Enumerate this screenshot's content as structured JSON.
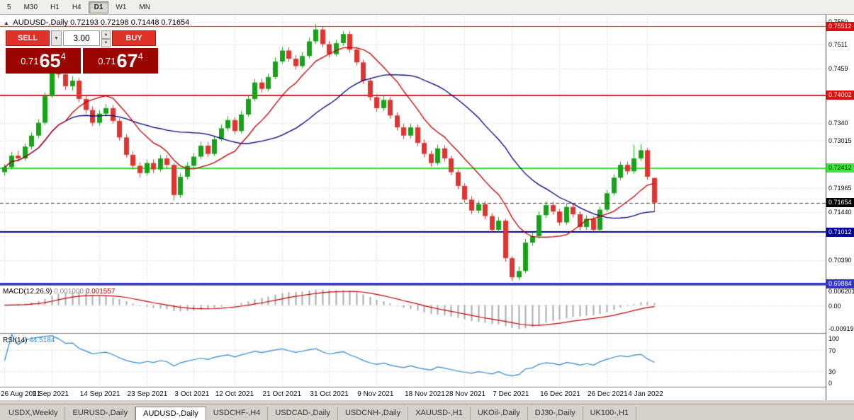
{
  "toolbar": {
    "timeframes": [
      {
        "label": "5",
        "active": false
      },
      {
        "label": "M30",
        "active": false
      },
      {
        "label": "H1",
        "active": false
      },
      {
        "label": "H4",
        "active": false
      },
      {
        "label": "D1",
        "active": true
      },
      {
        "label": "W1",
        "active": false
      },
      {
        "label": "MN",
        "active": false
      }
    ]
  },
  "symbol_header": {
    "marker": "▲",
    "symbol": "AUDUSD-,Daily",
    "ohlc": "0.72193 0.72198 0.71448 0.71654"
  },
  "trade_panel": {
    "sell_label": "SELL",
    "buy_label": "BUY",
    "lot_value": "3.00",
    "sell_price": {
      "prefix": "0.71",
      "big": "65",
      "sup": "4"
    },
    "buy_price": {
      "prefix": "0.71",
      "big": "67",
      "sup": "4"
    }
  },
  "indicators": {
    "macd": {
      "label": "MACD(12,26,9)",
      "value1": "0.001000",
      "value2": "0.001557",
      "scale_top": "0.006201",
      "scale_zero": "0.00",
      "scale_bottom": "-0.00919"
    },
    "rsi": {
      "label": "RSI(14)",
      "value": "44.5184",
      "levels": [
        100,
        70,
        30,
        0
      ]
    }
  },
  "chart_data": {
    "type": "candlestick",
    "symbol": "AUDUSD",
    "timeframe": "Daily",
    "current": {
      "open": 0.72193,
      "high": 0.72198,
      "low": 0.71448,
      "close": 0.71654
    },
    "bull_color": "#17a317",
    "bear_color": "#df3431",
    "ma_fast_period": 10,
    "ma_fast_color": "#c40000",
    "ma_slow_period": 25,
    "ma_slow_color": "#000080",
    "macd_hist_color": "#a9a9a9",
    "macd_signal_color": "#c40000",
    "rsi_color": "#2e86d0",
    "price_axis": {
      "top": 0.7576,
      "bottom": 0.6987,
      "grid_labels": [
        {
          "text": "0.7560",
          "price": 0.756
        },
        {
          "text": "0.7511",
          "price": 0.7511
        },
        {
          "text": "0.7459",
          "price": 0.7459
        },
        {
          "text": "0.7340",
          "price": 0.734
        },
        {
          "text": "0.73015",
          "price": 0.73015
        },
        {
          "text": "0.71965",
          "price": 0.71965
        },
        {
          "text": "0.71440",
          "price": 0.7144
        },
        {
          "text": "0.70390",
          "price": 0.7039
        }
      ],
      "tags": [
        {
          "text": "0.75512",
          "price": 0.75512,
          "bg": "#dd0f0f",
          "fg": "#ffffff"
        },
        {
          "text": "0.74002",
          "price": 0.74002,
          "bg": "#dd0f0f",
          "fg": "#ffffff"
        },
        {
          "text": "0.72412",
          "price": 0.72412,
          "bg": "#3fe43f",
          "fg": "#003300"
        },
        {
          "text": "0.71654",
          "price": 0.71654,
          "bg": "#000000",
          "fg": "#ffffff"
        },
        {
          "text": "0.71012",
          "price": 0.71012,
          "bg": "#000099",
          "fg": "#ffffff"
        },
        {
          "text": "0.69884",
          "price": 0.69884,
          "bg": "#3434cc",
          "fg": "#ffffff"
        }
      ]
    },
    "hlines": [
      {
        "price": 0.75512,
        "color": "#cc2020",
        "width": 1
      },
      {
        "price": 0.74002,
        "color": "#cc2020",
        "width": 2
      },
      {
        "price": 0.72412,
        "color": "#2ee52e",
        "width": 2
      },
      {
        "price": 0.71012,
        "color": "#000090",
        "width": 2
      },
      {
        "price": 0.69884,
        "color": "#3434cc",
        "width": 3
      }
    ],
    "date_labels": [
      {
        "text": "26 Aug 2021",
        "index": 0
      },
      {
        "text": "5 Sep 2021",
        "index": 7
      },
      {
        "text": "14 Sep 2021",
        "index": 14
      },
      {
        "text": "23 Sep 2021",
        "index": 21
      },
      {
        "text": "3 Oct 2021",
        "index": 28
      },
      {
        "text": "12 Oct 2021",
        "index": 34
      },
      {
        "text": "21 Oct 2021",
        "index": 41
      },
      {
        "text": "31 Oct 2021",
        "index": 48
      },
      {
        "text": "9 Nov 2021",
        "index": 55
      },
      {
        "text": "18 Nov 2021",
        "index": 62
      },
      {
        "text": "28 Nov 2021",
        "index": 68
      },
      {
        "text": "7 Dec 2021",
        "index": 75
      },
      {
        "text": "16 Dec 2021",
        "index": 82
      },
      {
        "text": "26 Dec 2021",
        "index": 89
      },
      {
        "text": "4 Jan 2022",
        "index": 95
      }
    ],
    "candles": [
      [
        0.7232,
        0.725,
        0.7224,
        0.7243
      ],
      [
        0.7243,
        0.7276,
        0.7238,
        0.7268
      ],
      [
        0.7268,
        0.7279,
        0.7255,
        0.7262
      ],
      [
        0.7262,
        0.7295,
        0.7257,
        0.7288
      ],
      [
        0.7288,
        0.7319,
        0.7282,
        0.7312
      ],
      [
        0.7312,
        0.7348,
        0.7306,
        0.734
      ],
      [
        0.734,
        0.7406,
        0.7335,
        0.7398
      ],
      [
        0.7398,
        0.7477,
        0.7395,
        0.746
      ],
      [
        0.746,
        0.7473,
        0.7438,
        0.7446
      ],
      [
        0.7446,
        0.7455,
        0.7412,
        0.742
      ],
      [
        0.742,
        0.7442,
        0.741,
        0.7432
      ],
      [
        0.7432,
        0.7438,
        0.7385,
        0.7392
      ],
      [
        0.7392,
        0.7401,
        0.736,
        0.7368
      ],
      [
        0.7368,
        0.7376,
        0.7333,
        0.734
      ],
      [
        0.734,
        0.7368,
        0.7334,
        0.736
      ],
      [
        0.736,
        0.7381,
        0.7354,
        0.7372
      ],
      [
        0.7372,
        0.7379,
        0.7338,
        0.7344
      ],
      [
        0.7344,
        0.735,
        0.7301,
        0.7308
      ],
      [
        0.7308,
        0.7315,
        0.7264,
        0.727
      ],
      [
        0.727,
        0.7278,
        0.7238,
        0.7246
      ],
      [
        0.7246,
        0.7254,
        0.722,
        0.723
      ],
      [
        0.723,
        0.726,
        0.7224,
        0.7252
      ],
      [
        0.7252,
        0.726,
        0.723,
        0.7238
      ],
      [
        0.7238,
        0.727,
        0.7233,
        0.7262
      ],
      [
        0.7262,
        0.727,
        0.724,
        0.7248
      ],
      [
        0.7248,
        0.7252,
        0.717,
        0.7182
      ],
      [
        0.7182,
        0.723,
        0.7176,
        0.7222
      ],
      [
        0.7222,
        0.7254,
        0.7216,
        0.7246
      ],
      [
        0.7246,
        0.7274,
        0.724,
        0.7266
      ],
      [
        0.7266,
        0.7298,
        0.7261,
        0.729
      ],
      [
        0.729,
        0.7298,
        0.7265,
        0.7272
      ],
      [
        0.7272,
        0.7312,
        0.7267,
        0.7304
      ],
      [
        0.7304,
        0.7336,
        0.7299,
        0.7328
      ],
      [
        0.7328,
        0.7354,
        0.7322,
        0.7346
      ],
      [
        0.7346,
        0.7353,
        0.7315,
        0.7322
      ],
      [
        0.7322,
        0.7366,
        0.7317,
        0.7358
      ],
      [
        0.7358,
        0.74,
        0.7353,
        0.7392
      ],
      [
        0.7392,
        0.7436,
        0.7387,
        0.7428
      ],
      [
        0.7428,
        0.7436,
        0.7406,
        0.7414
      ],
      [
        0.7414,
        0.7448,
        0.7409,
        0.744
      ],
      [
        0.744,
        0.7483,
        0.7435,
        0.7474
      ],
      [
        0.7474,
        0.7506,
        0.7469,
        0.7498
      ],
      [
        0.7498,
        0.7505,
        0.7473,
        0.748
      ],
      [
        0.748,
        0.7488,
        0.7456,
        0.7464
      ],
      [
        0.7464,
        0.7494,
        0.7459,
        0.7486
      ],
      [
        0.7486,
        0.7526,
        0.7481,
        0.7518
      ],
      [
        0.7518,
        0.7556,
        0.7512,
        0.7544
      ],
      [
        0.7544,
        0.755,
        0.7505,
        0.7512
      ],
      [
        0.7512,
        0.7519,
        0.7483,
        0.749
      ],
      [
        0.749,
        0.7522,
        0.7485,
        0.7514
      ],
      [
        0.7514,
        0.754,
        0.7508,
        0.7534
      ],
      [
        0.7534,
        0.754,
        0.7493,
        0.75
      ],
      [
        0.75,
        0.7506,
        0.7465,
        0.7472
      ],
      [
        0.7472,
        0.7478,
        0.7425,
        0.7432
      ],
      [
        0.7432,
        0.7438,
        0.7389,
        0.7396
      ],
      [
        0.7396,
        0.7403,
        0.7364,
        0.7372
      ],
      [
        0.7372,
        0.7398,
        0.7366,
        0.739
      ],
      [
        0.739,
        0.7396,
        0.7349,
        0.7356
      ],
      [
        0.7356,
        0.7363,
        0.7323,
        0.733
      ],
      [
        0.733,
        0.7338,
        0.7304,
        0.7312
      ],
      [
        0.7312,
        0.7338,
        0.7306,
        0.733
      ],
      [
        0.733,
        0.7336,
        0.7289,
        0.7296
      ],
      [
        0.7296,
        0.7303,
        0.7265,
        0.7272
      ],
      [
        0.7272,
        0.7279,
        0.7244,
        0.7252
      ],
      [
        0.7252,
        0.7292,
        0.7247,
        0.7284
      ],
      [
        0.7284,
        0.7291,
        0.7255,
        0.7262
      ],
      [
        0.7262,
        0.7268,
        0.7225,
        0.7232
      ],
      [
        0.7232,
        0.7238,
        0.7195,
        0.7202
      ],
      [
        0.7202,
        0.7208,
        0.7165,
        0.7172
      ],
      [
        0.7172,
        0.7179,
        0.714,
        0.7148
      ],
      [
        0.7148,
        0.717,
        0.7142,
        0.7162
      ],
      [
        0.7162,
        0.7168,
        0.7129,
        0.7136
      ],
      [
        0.7136,
        0.7142,
        0.7099,
        0.7106
      ],
      [
        0.7106,
        0.7134,
        0.7101,
        0.7126
      ],
      [
        0.7126,
        0.713,
        0.7036,
        0.7044
      ],
      [
        0.7044,
        0.7048,
        0.6994,
        0.7002
      ],
      [
        0.7002,
        0.7026,
        0.6996,
        0.7016
      ],
      [
        0.7016,
        0.7086,
        0.7011,
        0.7078
      ],
      [
        0.7078,
        0.7101,
        0.7071,
        0.7092
      ],
      [
        0.7092,
        0.7146,
        0.7087,
        0.7138
      ],
      [
        0.7138,
        0.7168,
        0.7132,
        0.716
      ],
      [
        0.716,
        0.7167,
        0.7139,
        0.7146
      ],
      [
        0.7146,
        0.7152,
        0.7115,
        0.7122
      ],
      [
        0.7122,
        0.7164,
        0.7117,
        0.7156
      ],
      [
        0.7156,
        0.7163,
        0.7133,
        0.714
      ],
      [
        0.714,
        0.7146,
        0.7105,
        0.7112
      ],
      [
        0.7112,
        0.7138,
        0.7106,
        0.713
      ],
      [
        0.713,
        0.7136,
        0.7099,
        0.7106
      ],
      [
        0.7106,
        0.7157,
        0.7101,
        0.715
      ],
      [
        0.715,
        0.7193,
        0.7145,
        0.7186
      ],
      [
        0.7186,
        0.7227,
        0.7181,
        0.722
      ],
      [
        0.722,
        0.7255,
        0.7215,
        0.7248
      ],
      [
        0.7248,
        0.7255,
        0.7227,
        0.7234
      ],
      [
        0.7234,
        0.7292,
        0.7229,
        0.7262
      ],
      [
        0.7262,
        0.7293,
        0.7256,
        0.728
      ],
      [
        0.728,
        0.7285,
        0.7215,
        0.7222
      ],
      [
        0.72193,
        0.72198,
        0.71448,
        0.71654
      ]
    ]
  },
  "tabs": {
    "items": [
      {
        "label": "USDX,Weekly",
        "active": false
      },
      {
        "label": "EURUSD-,Daily",
        "active": false
      },
      {
        "label": "AUDUSD-,Daily",
        "active": true
      },
      {
        "label": "USDCHF-,H4",
        "active": false
      },
      {
        "label": "USDCAD-,Daily",
        "active": false
      },
      {
        "label": "USDCNH-,Daily",
        "active": false
      },
      {
        "label": "XAUUSD-,H1",
        "active": false
      },
      {
        "label": "UKOil-,Daily",
        "active": false
      },
      {
        "label": "DJ30-,Daily",
        "active": false
      },
      {
        "label": "UK100-,H1",
        "active": false
      }
    ]
  }
}
